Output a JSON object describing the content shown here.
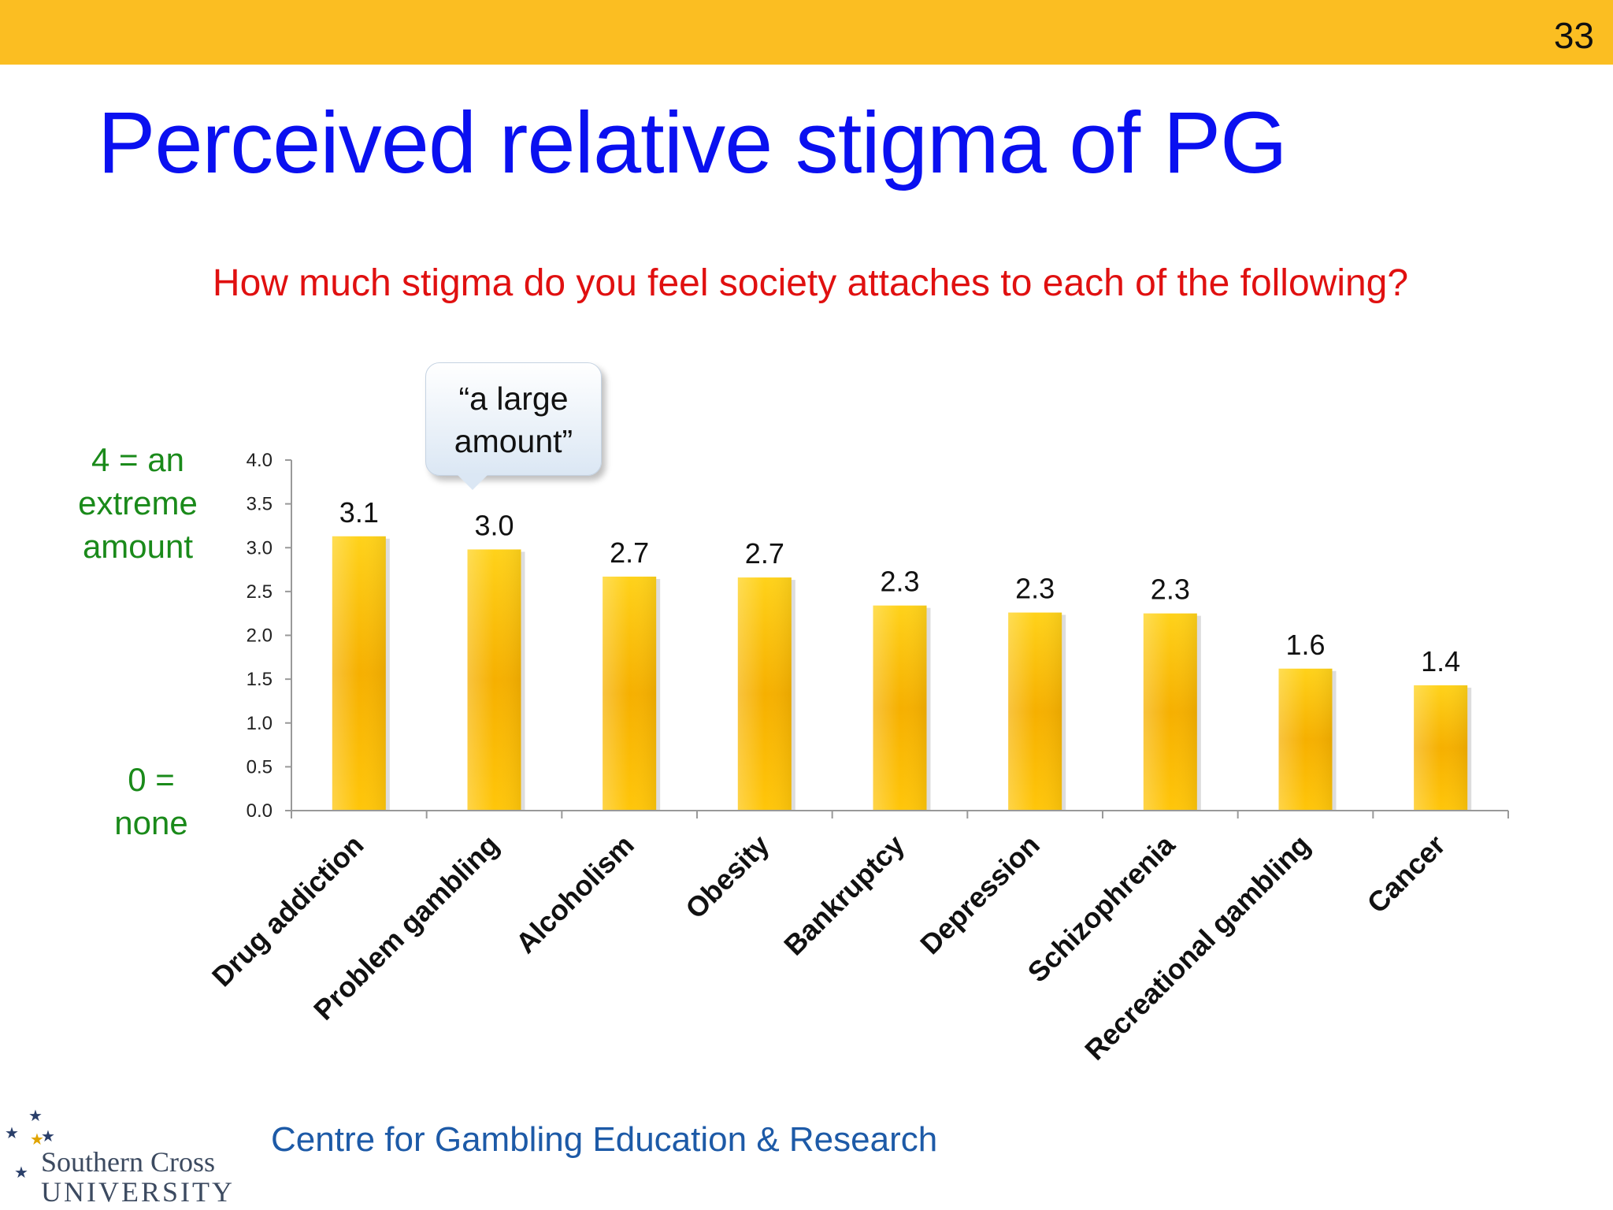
{
  "slide_number": "33",
  "title": "Perceived relative stigma of PG",
  "question": "How much stigma do you feel society attaches to each of the following?",
  "scale_notes": {
    "top": [
      "4 = an",
      "extreme",
      "amount"
    ],
    "bottom": [
      "0 =",
      "none"
    ]
  },
  "callout": [
    "“a large",
    "amount”"
  ],
  "footer": "Centre for Gambling Education & Research",
  "logo": {
    "line1": "Southern Cross",
    "line2": "UNIVERSITY"
  },
  "colors": {
    "bar": "#fbbf10",
    "title": "#0a10f0",
    "question": "#e01010",
    "note": "#1a8a1a",
    "band": "#fbbe22"
  },
  "chart_data": {
    "type": "bar",
    "categories": [
      "Drug addiction",
      "Problem gambling",
      "Alcoholism",
      "Obesity",
      "Bankruptcy",
      "Depression",
      "Schizophrenia",
      "Recreational gambling",
      "Cancer"
    ],
    "values": [
      3.13,
      2.98,
      2.67,
      2.66,
      2.34,
      2.26,
      2.25,
      1.62,
      1.43
    ],
    "data_labels": [
      "3.1",
      "3.0",
      "2.7",
      "2.7",
      "2.3",
      "2.3",
      "2.3",
      "1.6",
      "1.4"
    ],
    "y_ticks": [
      "0.0",
      "0.5",
      "1.0",
      "1.5",
      "2.0",
      "2.5",
      "3.0",
      "3.5",
      "4.0"
    ],
    "ylim": [
      0,
      4
    ],
    "grid": false,
    "legend": "none"
  }
}
